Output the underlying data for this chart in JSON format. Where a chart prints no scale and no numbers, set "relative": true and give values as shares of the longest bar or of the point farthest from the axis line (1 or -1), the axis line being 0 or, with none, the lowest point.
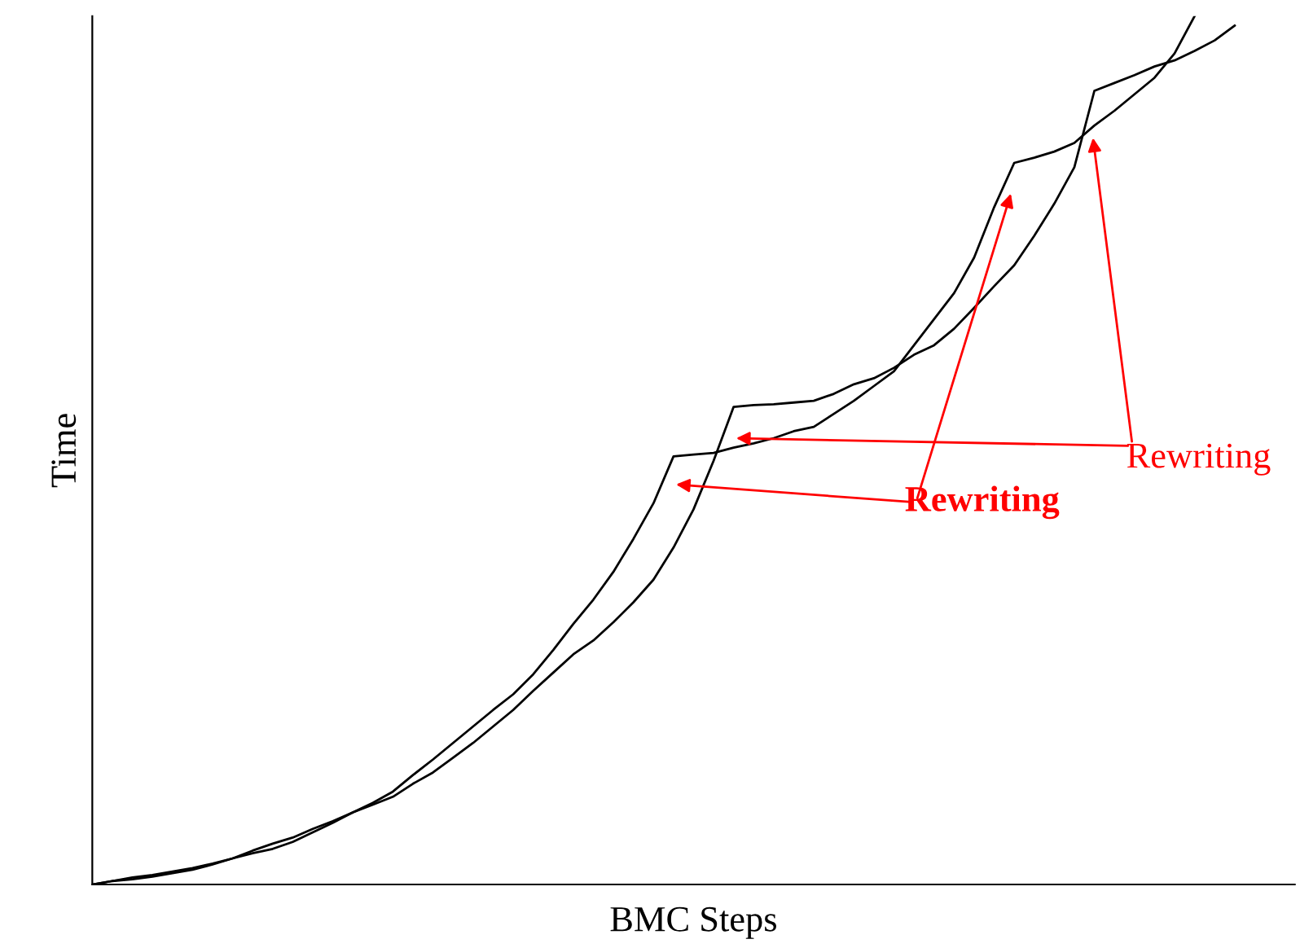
{
  "chart_data": {
    "type": "line",
    "relative": true,
    "xlabel": "BMC Steps",
    "ylabel": "Time",
    "marker": "none",
    "line_style": "solid",
    "categories": [
      null,
      null,
      null,
      null,
      null,
      null,
      null,
      null,
      null,
      null,
      null,
      null,
      null,
      null,
      null,
      null,
      null,
      null,
      null,
      null,
      null,
      null,
      null,
      null,
      null,
      null,
      null,
      null,
      null,
      null,
      null,
      null,
      null,
      null,
      null,
      null,
      null,
      null,
      null,
      null,
      null,
      null,
      null,
      null,
      null,
      null,
      null,
      null,
      null,
      null,
      null,
      null,
      null,
      null,
      null,
      null,
      null,
      null,
      null,
      null
    ],
    "series": [
      {
        "color": "#000000",
        "values": [
          0,
          0.004,
          0.008,
          0.011,
          0.015,
          0.019,
          0.024,
          0.03,
          0.036,
          0.041,
          0.049,
          0.06,
          0.071,
          0.083,
          0.094,
          0.107,
          0.126,
          0.144,
          0.163,
          0.182,
          0.201,
          0.219,
          0.242,
          0.27,
          0.3,
          0.328,
          0.36,
          0.398,
          0.439,
          0.493,
          0.495,
          0.497,
          0.503,
          0.508,
          0.514,
          0.522,
          0.527,
          0.542,
          0.557,
          0.574,
          0.591,
          0.621,
          0.651,
          0.681,
          0.722,
          0.78,
          0.831,
          0.837,
          0.844,
          0.854,
          0.874,
          0.891,
          0.91,
          0.929,
          0.957,
          1,
          null,
          null,
          null,
          null
        ]
      },
      {
        "color": "#000000",
        "values": [
          0,
          0.004,
          0.006,
          0.009,
          0.013,
          0.017,
          0.023,
          0.03,
          0.039,
          0.047,
          0.054,
          0.064,
          0.073,
          0.083,
          0.092,
          0.101,
          0.116,
          0.129,
          0.146,
          0.163,
          0.182,
          0.201,
          0.223,
          0.244,
          0.265,
          0.281,
          0.302,
          0.325,
          0.351,
          0.388,
          0.432,
          0.488,
          0.55,
          0.552,
          0.553,
          0.555,
          0.557,
          0.565,
          0.576,
          0.583,
          0.595,
          0.61,
          0.621,
          0.64,
          0.664,
          0.689,
          0.713,
          0.747,
          0.784,
          0.826,
          0.914,
          0.923,
          0.932,
          0.942,
          0.949,
          0.96,
          0.972,
          0.989,
          null,
          null
        ]
      }
    ],
    "annotations": [
      "Rewriting",
      "Rewriting"
    ]
  }
}
